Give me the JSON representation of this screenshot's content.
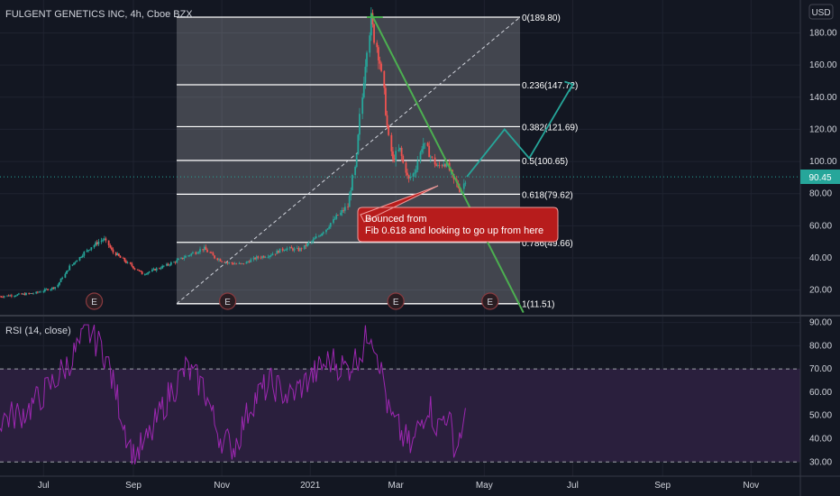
{
  "header": {
    "symbol_title": "FULGENT GENETICS INC, 4h, Cboe BZX",
    "currency_button": "USD"
  },
  "price_badge": "90.45",
  "rsi_label": "RSI (14, close)",
  "annotation": {
    "line1": "Bounced from",
    "line2": "Fib 0.618 and looking to go up from here"
  },
  "earnings_markers": [
    "E",
    "E",
    "E",
    "E"
  ],
  "colors": {
    "background": "#131722",
    "up": "#26a69a",
    "down": "#ef5350",
    "trendline": "#4caf50",
    "projection": "#26a69a",
    "annotation_bg": "#b71c1c",
    "rsi_line": "#9c27b0",
    "rsi_band": "#2a1f3d"
  },
  "chart_data": [
    {
      "type": "candlestick",
      "title": "FULGENT GENETICS INC, 4h, Cboe BZX",
      "y_scale": "linear",
      "ylim": [
        8,
        196
      ],
      "y_ticks": [
        "20.00",
        "40.00",
        "60.00",
        "80.00",
        "100.00",
        "120.00",
        "140.00",
        "160.00",
        "180.00"
      ],
      "x_ticks": [
        "Jul",
        "Sep",
        "Nov",
        "2021",
        "Mar",
        "May",
        "Jul",
        "Sep",
        "Nov"
      ],
      "last_price": 90.45,
      "fibonacci_levels": [
        {
          "label": "0(189.80)",
          "value": 189.8
        },
        {
          "label": "0.236(147.72)",
          "value": 147.72
        },
        {
          "label": "0.382(121.69)",
          "value": 121.69
        },
        {
          "label": "0.5(100.65)",
          "value": 100.65
        },
        {
          "label": "0.618(79.62)",
          "value": 79.62
        },
        {
          "label": "0.786(49.66)",
          "value": 49.66
        },
        {
          "label": "1(11.51)",
          "value": 11.51
        }
      ],
      "price_path": [
        {
          "date": "2020-06-01",
          "price": 16
        },
        {
          "date": "2020-06-25",
          "price": 18
        },
        {
          "date": "2020-07-10",
          "price": 22
        },
        {
          "date": "2020-07-20",
          "price": 35
        },
        {
          "date": "2020-07-28",
          "price": 42
        },
        {
          "date": "2020-08-05",
          "price": 48
        },
        {
          "date": "2020-08-12",
          "price": 52
        },
        {
          "date": "2020-08-18",
          "price": 44
        },
        {
          "date": "2020-08-28",
          "price": 37
        },
        {
          "date": "2020-09-08",
          "price": 30
        },
        {
          "date": "2020-09-20",
          "price": 34
        },
        {
          "date": "2020-10-01",
          "price": 38
        },
        {
          "date": "2020-10-10",
          "price": 42
        },
        {
          "date": "2020-10-20",
          "price": 46
        },
        {
          "date": "2020-10-28",
          "price": 40
        },
        {
          "date": "2020-11-05",
          "price": 37
        },
        {
          "date": "2020-11-15",
          "price": 36
        },
        {
          "date": "2020-11-25",
          "price": 40
        },
        {
          "date": "2020-12-05",
          "price": 42
        },
        {
          "date": "2020-12-15",
          "price": 46
        },
        {
          "date": "2020-12-25",
          "price": 45
        },
        {
          "date": "2021-01-05",
          "price": 52
        },
        {
          "date": "2021-01-12",
          "price": 58
        },
        {
          "date": "2021-01-20",
          "price": 66
        },
        {
          "date": "2021-01-27",
          "price": 72
        },
        {
          "date": "2021-02-02",
          "price": 100
        },
        {
          "date": "2021-02-07",
          "price": 150
        },
        {
          "date": "2021-02-12",
          "price": 189.8
        },
        {
          "date": "2021-02-15",
          "price": 176
        },
        {
          "date": "2021-02-19",
          "price": 160
        },
        {
          "date": "2021-02-23",
          "price": 125
        },
        {
          "date": "2021-02-27",
          "price": 100
        },
        {
          "date": "2021-03-04",
          "price": 108
        },
        {
          "date": "2021-03-10",
          "price": 88
        },
        {
          "date": "2021-03-15",
          "price": 95
        },
        {
          "date": "2021-03-20",
          "price": 112
        },
        {
          "date": "2021-03-25",
          "price": 104
        },
        {
          "date": "2021-03-30",
          "price": 96
        },
        {
          "date": "2021-04-04",
          "price": 100
        },
        {
          "date": "2021-04-08",
          "price": 93
        },
        {
          "date": "2021-04-12",
          "price": 86
        },
        {
          "date": "2021-04-15",
          "price": 82
        },
        {
          "date": "2021-04-19",
          "price": 90.45
        }
      ],
      "projection_path": [
        {
          "date": "2021-04-19",
          "price": 90.45
        },
        {
          "date": "2021-05-15",
          "price": 120
        },
        {
          "date": "2021-06-01",
          "price": 102
        },
        {
          "date": "2021-07-01",
          "price": 148
        }
      ]
    },
    {
      "type": "line",
      "title": "RSI (14, close)",
      "ylim": [
        27,
        91
      ],
      "y_ticks": [
        "30.00",
        "40.00",
        "50.00",
        "60.00",
        "70.00",
        "80.00",
        "90.00"
      ],
      "band": [
        30,
        70
      ],
      "values": [
        {
          "date": "2020-06-01",
          "rsi": 48
        },
        {
          "date": "2020-06-20",
          "rsi": 52
        },
        {
          "date": "2020-07-05",
          "rsi": 62
        },
        {
          "date": "2020-07-20",
          "rsi": 74
        },
        {
          "date": "2020-08-01",
          "rsi": 86
        },
        {
          "date": "2020-08-12",
          "rsi": 78
        },
        {
          "date": "2020-08-22",
          "rsi": 56
        },
        {
          "date": "2020-09-01",
          "rsi": 32
        },
        {
          "date": "2020-09-12",
          "rsi": 40
        },
        {
          "date": "2020-09-25",
          "rsi": 58
        },
        {
          "date": "2020-10-08",
          "rsi": 70
        },
        {
          "date": "2020-10-20",
          "rsi": 62
        },
        {
          "date": "2020-10-30",
          "rsi": 42
        },
        {
          "date": "2020-11-10",
          "rsi": 36
        },
        {
          "date": "2020-11-22",
          "rsi": 56
        },
        {
          "date": "2020-12-05",
          "rsi": 64
        },
        {
          "date": "2020-12-18",
          "rsi": 58
        },
        {
          "date": "2021-01-01",
          "rsi": 66
        },
        {
          "date": "2021-01-15",
          "rsi": 74
        },
        {
          "date": "2021-01-27",
          "rsi": 70
        },
        {
          "date": "2021-02-06",
          "rsi": 78
        },
        {
          "date": "2021-02-12",
          "rsi": 88
        },
        {
          "date": "2021-02-18",
          "rsi": 74
        },
        {
          "date": "2021-02-25",
          "rsi": 50
        },
        {
          "date": "2021-03-05",
          "rsi": 42
        },
        {
          "date": "2021-03-12",
          "rsi": 36
        },
        {
          "date": "2021-03-18",
          "rsi": 46
        },
        {
          "date": "2021-03-24",
          "rsi": 56
        },
        {
          "date": "2021-03-30",
          "rsi": 44
        },
        {
          "date": "2021-04-05",
          "rsi": 52
        },
        {
          "date": "2021-04-12",
          "rsi": 36
        },
        {
          "date": "2021-04-16",
          "rsi": 45
        },
        {
          "date": "2021-04-19",
          "rsi": 48
        }
      ]
    }
  ]
}
